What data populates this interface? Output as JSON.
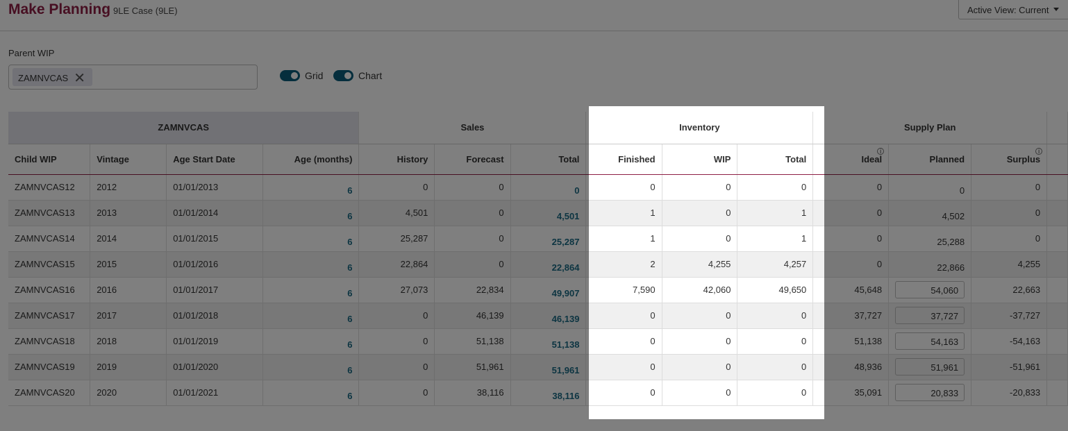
{
  "header": {
    "title": "Make Planning",
    "subtitle": "9LE Case (9LE)",
    "active_view": "Active View: Current"
  },
  "filter": {
    "label": "Parent WIP",
    "chip": "ZAMNVCAS"
  },
  "toggles": {
    "grid": "Grid",
    "chart": "Chart"
  },
  "groups": {
    "parent": "ZAMNVCAS",
    "sales": "Sales",
    "inventory": "Inventory",
    "supply": "Supply Plan"
  },
  "columns": [
    "Child WIP",
    "Vintage",
    "Age Start Date",
    "Age (months)",
    "History",
    "Forecast",
    "Total",
    "Finished",
    "WIP",
    "Total",
    "Ideal",
    "Planned",
    "Surplus"
  ],
  "rows": [
    [
      "ZAMNVCAS12",
      "2012",
      "01/01/2013",
      "6",
      "0",
      "0",
      "0",
      "0",
      "0",
      "0",
      "0",
      "0",
      "0"
    ],
    [
      "ZAMNVCAS13",
      "2013",
      "01/01/2014",
      "6",
      "4,501",
      "0",
      "4,501",
      "1",
      "0",
      "1",
      "0",
      "4,502",
      "0"
    ],
    [
      "ZAMNVCAS14",
      "2014",
      "01/01/2015",
      "6",
      "25,287",
      "0",
      "25,287",
      "1",
      "0",
      "1",
      "0",
      "25,288",
      "0"
    ],
    [
      "ZAMNVCAS15",
      "2015",
      "01/01/2016",
      "6",
      "22,864",
      "0",
      "22,864",
      "2",
      "4,255",
      "4,257",
      "0",
      "22,866",
      "4,255"
    ],
    [
      "ZAMNVCAS16",
      "2016",
      "01/01/2017",
      "6",
      "27,073",
      "22,834",
      "49,907",
      "7,590",
      "42,060",
      "49,650",
      "45,648",
      "54,060",
      "22,663"
    ],
    [
      "ZAMNVCAS17",
      "2017",
      "01/01/2018",
      "6",
      "0",
      "46,139",
      "46,139",
      "0",
      "0",
      "0",
      "37,727",
      "37,727",
      "-37,727"
    ],
    [
      "ZAMNVCAS18",
      "2018",
      "01/01/2019",
      "6",
      "0",
      "51,138",
      "51,138",
      "0",
      "0",
      "0",
      "51,138",
      "54,163",
      "-54,163"
    ],
    [
      "ZAMNVCAS19",
      "2019",
      "01/01/2020",
      "6",
      "0",
      "51,961",
      "51,961",
      "0",
      "0",
      "0",
      "48,936",
      "51,961",
      "-51,961"
    ],
    [
      "ZAMNVCAS20",
      "2020",
      "01/01/2021",
      "6",
      "0",
      "38,116",
      "38,116",
      "0",
      "0",
      "0",
      "35,091",
      "20,833",
      "-20,833"
    ]
  ],
  "editable_planned_rows": [
    4,
    5,
    6,
    7,
    8
  ]
}
